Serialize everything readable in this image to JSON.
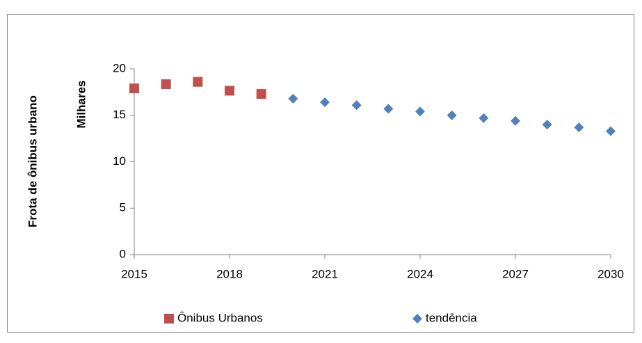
{
  "chart_data": {
    "type": "scatter",
    "ylabel": "Frota  de ônibus urbano",
    "yunit": "Milhares",
    "series": [
      {
        "name": "Ônibus Urbanos",
        "color": "#c0504d",
        "marker": "square",
        "x": [
          2015,
          2016,
          2017,
          2018,
          2019
        ],
        "values": [
          17.9,
          18.35,
          18.6,
          17.65,
          17.3
        ]
      },
      {
        "name": "tendência",
        "color": "#4f81bd",
        "marker": "diamond",
        "x": [
          2020,
          2021,
          2022,
          2023,
          2024,
          2025,
          2026,
          2027,
          2028,
          2029,
          2030
        ],
        "values": [
          16.8,
          16.4,
          16.1,
          15.7,
          15.4,
          15.0,
          14.7,
          14.4,
          14.0,
          13.7,
          13.3
        ]
      }
    ],
    "xlim": [
      2015,
      2030
    ],
    "xticks": [
      2015,
      2018,
      2021,
      2024,
      2027,
      2030
    ],
    "ylim": [
      0,
      20
    ],
    "yticks": [
      0,
      5,
      10,
      15,
      20
    ],
    "grid": false,
    "legend": "bottom"
  }
}
